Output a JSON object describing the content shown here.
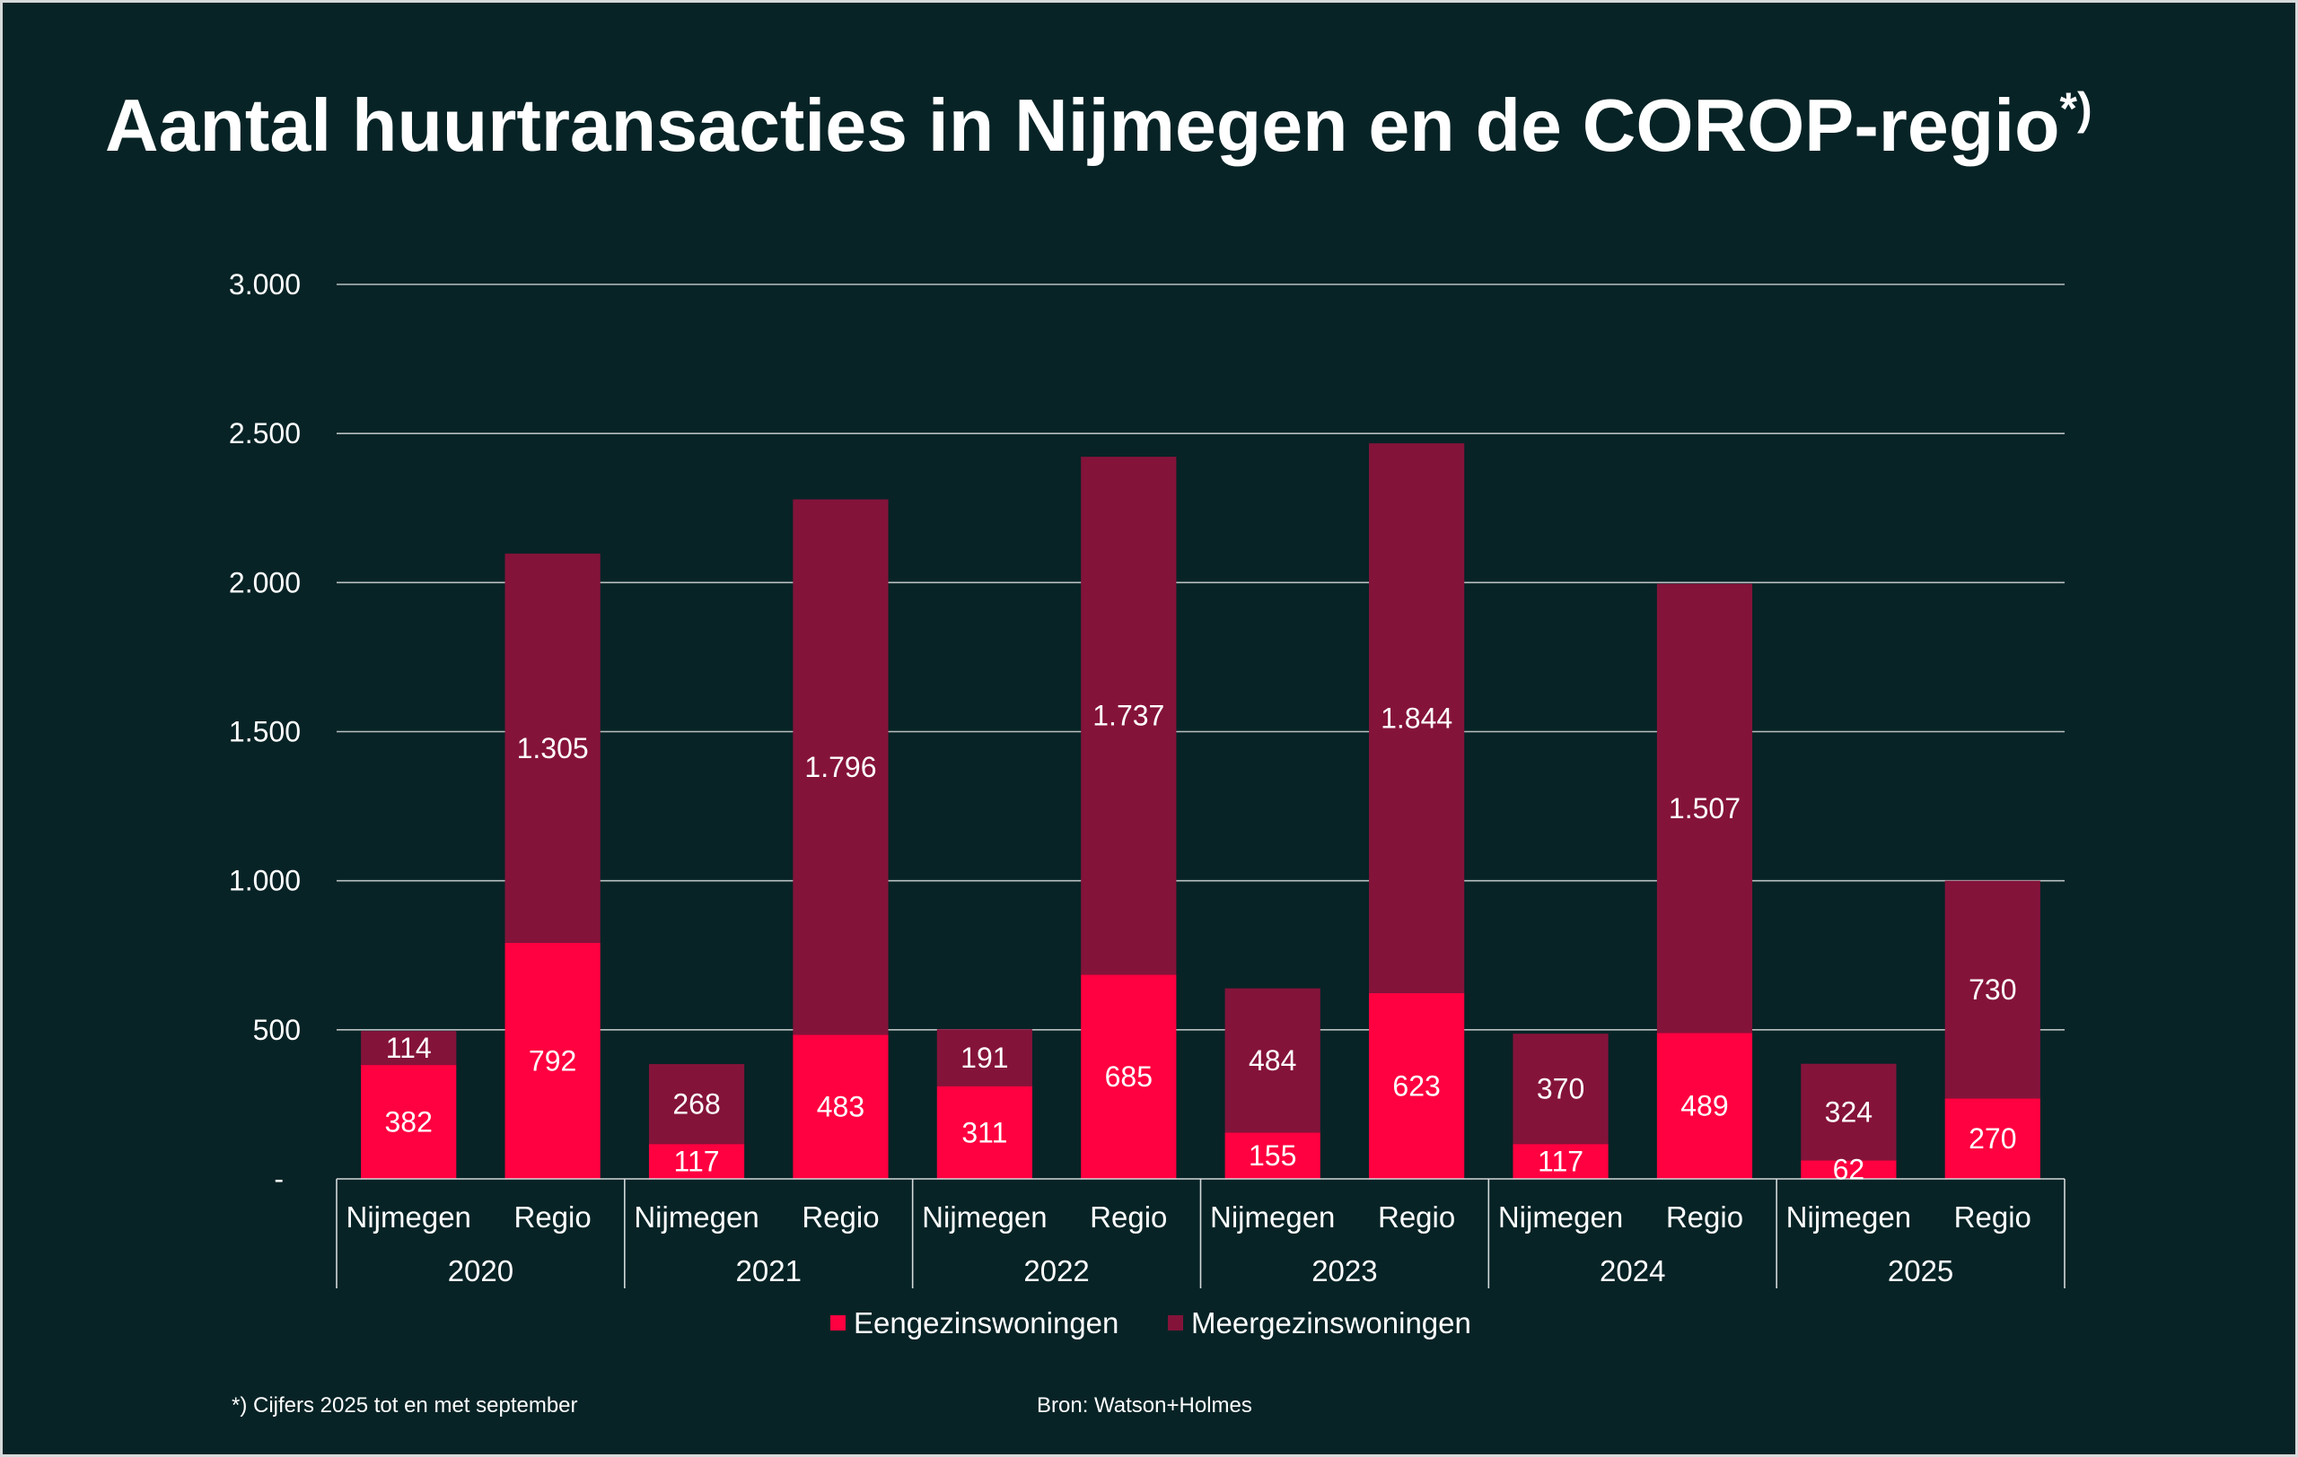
{
  "colors": {
    "background": "#072326"
  },
  "chart_data": {
    "type": "bar",
    "stacked": true,
    "title": "Aantal huurtransacties in Nijmegen en de COROP-regio",
    "title_marker": "*)",
    "x_groups": [
      "2020",
      "2021",
      "2022",
      "2023",
      "2024",
      "2025"
    ],
    "categories": [
      "Nijmegen",
      "Regio",
      "Nijmegen",
      "Regio",
      "Nijmegen",
      "Regio",
      "Nijmegen",
      "Regio",
      "Nijmegen",
      "Regio",
      "Nijmegen",
      "Regio"
    ],
    "series": [
      {
        "name": "Eengezinswoningen",
        "color": "#FF0040",
        "values": [
          382,
          792,
          117,
          483,
          311,
          685,
          155,
          623,
          117,
          489,
          62,
          270
        ]
      },
      {
        "name": "Meergezinswoningen",
        "color": "#84133A",
        "values": [
          114,
          1305,
          268,
          1796,
          191,
          1737,
          484,
          1844,
          370,
          1507,
          324,
          730
        ]
      }
    ],
    "ylim": [
      0,
      3000
    ],
    "yticks": [
      0,
      500,
      1000,
      1500,
      2000,
      2500,
      3000
    ],
    "ytick_labels": [
      "-",
      "500",
      "1.000",
      "1.500",
      "2.000",
      "2.500",
      "3.000"
    ],
    "grid": true,
    "data_labels": true,
    "legend_position": "bottom",
    "footnote": "*) Cijfers 2025 tot en met september",
    "source": "Bron: Watson+Holmes"
  }
}
